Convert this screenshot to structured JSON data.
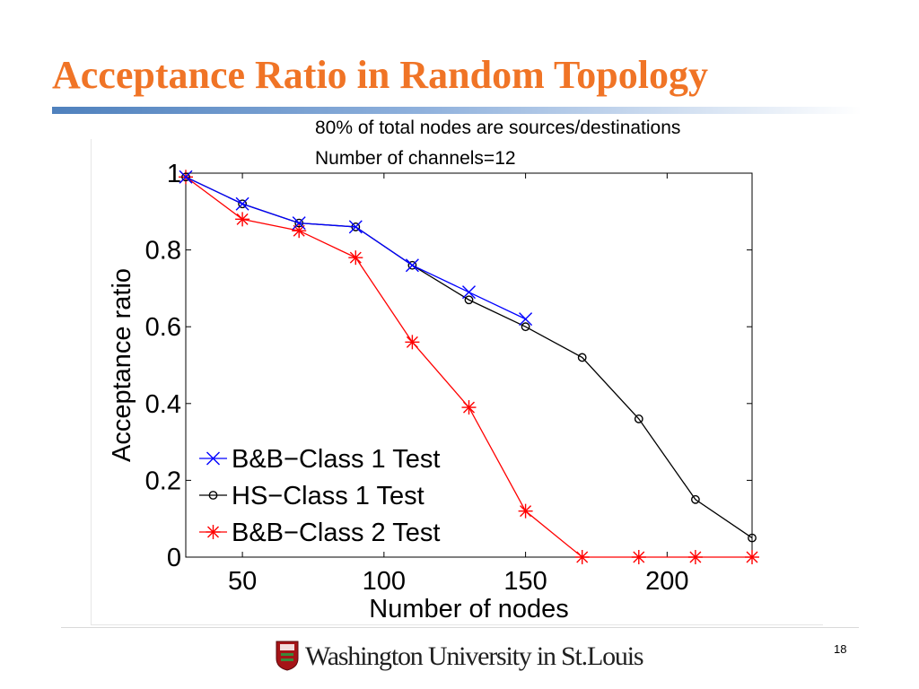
{
  "slide": {
    "title": "Acceptance Ratio in Random Topology",
    "notes": [
      "80% of total nodes are sources/destinations",
      "Number of channels=12"
    ],
    "logo_text": "Washington University in St.Louis",
    "page_number": "18",
    "accent_color": "#f07426",
    "rule_color": "#4f81bd"
  },
  "chart_data": {
    "type": "line",
    "title": "",
    "xlabel": "Number of nodes",
    "ylabel": "Acceptance ratio",
    "xlim": [
      30,
      230
    ],
    "ylim": [
      0,
      1
    ],
    "xticks": [
      50,
      100,
      150,
      200
    ],
    "yticks": [
      0,
      0.2,
      0.4,
      0.6,
      0.8,
      1
    ],
    "xtick_labels": [
      "50",
      "100",
      "150",
      "200"
    ],
    "ytick_labels": [
      "0",
      "0.2",
      "0.4",
      "0.6",
      "0.8",
      "1"
    ],
    "grid": false,
    "legend_position": "bottom-left",
    "series": [
      {
        "name": "B&B−Class 1 Test",
        "color": "#0000ff",
        "marker": "x",
        "x": [
          30,
          50,
          70,
          90,
          110,
          130,
          150
        ],
        "y": [
          0.99,
          0.92,
          0.87,
          0.86,
          0.76,
          0.69,
          0.62
        ]
      },
      {
        "name": "HS−Class 1 Test",
        "color": "#000000",
        "marker": "o",
        "x": [
          30,
          50,
          70,
          90,
          110,
          130,
          150,
          170,
          190,
          210,
          230
        ],
        "y": [
          0.99,
          0.92,
          0.87,
          0.86,
          0.76,
          0.67,
          0.6,
          0.52,
          0.36,
          0.15,
          0.05
        ]
      },
      {
        "name": "B&B−Class 2 Test",
        "color": "#ff0000",
        "marker": "*",
        "x": [
          30,
          50,
          70,
          90,
          110,
          130,
          150,
          170,
          190,
          210,
          230
        ],
        "y": [
          0.99,
          0.88,
          0.85,
          0.78,
          0.56,
          0.39,
          0.12,
          0.0,
          0.0,
          0.0,
          0.0
        ]
      }
    ]
  }
}
